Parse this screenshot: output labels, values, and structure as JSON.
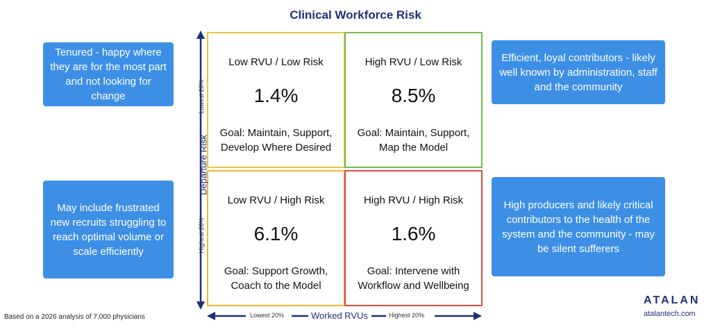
{
  "title": "Clinical Workforce Risk",
  "callouts": {
    "top_left": "Tenured - happy where they are for the most part and not looking for change",
    "bottom_left": "May include frustrated new recruits struggling to reach optimal volume or scale efficiently",
    "top_right": "Efficient, loyal contributors - likely well known by administration, staff and the community",
    "bottom_right": "High producers and likely critical contributors to the health of the system and the community - may be silent sufferers"
  },
  "quadrants": {
    "q1": {
      "label": "Low RVU / Low Risk",
      "percent": "1.4%",
      "goal": "Goal: Maintain, Support, Develop Where Desired",
      "border_color": "#f2c43c"
    },
    "q2": {
      "label": "High RVU / Low Risk",
      "percent": "8.5%",
      "goal": "Goal: Maintain, Support, Map the Model",
      "border_color": "#73bf45"
    },
    "q3": {
      "label": "Low RVU / High Risk",
      "percent": "6.1%",
      "goal": "Goal: Support Growth, Coach to the Model",
      "border_color": "#f2b432"
    },
    "q4": {
      "label": "High RVU / High Risk",
      "percent": "1.6%",
      "goal": "Goal: Intervene with Workflow and Wellbeing",
      "border_color": "#e04a3a"
    }
  },
  "axes": {
    "y_title": "Departure Risk",
    "y_low": "Lowest 20%",
    "y_high": "Highest 20%",
    "x_title": "Worked RVUs",
    "x_low": "Lowest 20%",
    "x_high": "Highest 20%"
  },
  "footnote": "Based on a 2026 analysis of 7,000 physicians",
  "brand": {
    "logo_text": "ATALAN",
    "website": "atalantech.com",
    "color": "#1f2f78"
  },
  "colors": {
    "callout": "#3d8fe6"
  }
}
